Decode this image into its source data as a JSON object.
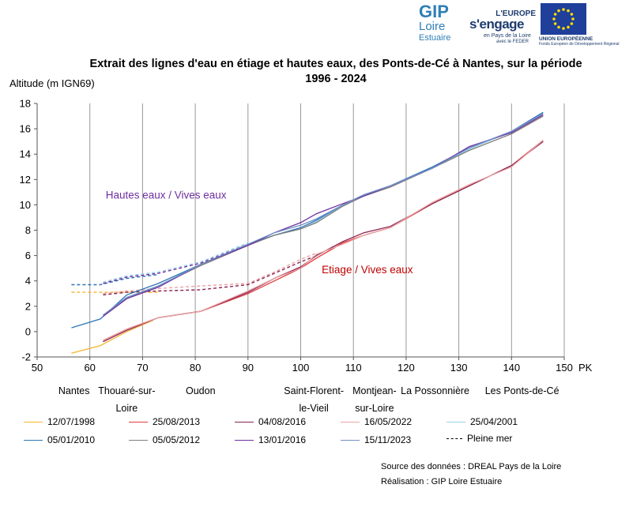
{
  "logos": {
    "gip": {
      "line1": "GIP",
      "line2": "Loire",
      "line3": "Estuaire"
    },
    "europe": {
      "line1": "L'EUROPE",
      "line2": "s'engage",
      "line3": "en Pays de la Loire",
      "line4": "avec le FEDER"
    },
    "eu": {
      "line1": "UNION EUROPÉENNE",
      "line2": "Fonds Européen de Développement Régional"
    }
  },
  "chart_data": {
    "type": "line",
    "title": "Extrait des lignes d'eau en étiage et hautes eaux, des Ponts-de-Cé à Nantes, sur la période 1996 - 2024",
    "ylabel": "Altitude  (m IGN69)",
    "xlabel": "PK",
    "xlim": [
      50,
      150
    ],
    "ylim": [
      -2,
      18
    ],
    "xticks": [
      50,
      60,
      70,
      80,
      90,
      100,
      110,
      120,
      130,
      140,
      150
    ],
    "yticks": [
      -2,
      0,
      2,
      4,
      6,
      8,
      10,
      12,
      14,
      16,
      18
    ],
    "grid": "vertical",
    "annotations": [
      {
        "text": "Hautes eaux / Vives eaux",
        "color": "#7030a0",
        "x": 63,
        "y": 10.5
      },
      {
        "text": "Etiage / Vives eaux",
        "color": "#c00000",
        "x": 104,
        "y": 4.6
      }
    ],
    "locations": [
      {
        "label": "Nantes",
        "x": 57
      },
      {
        "label": "Thouaré-sur-\nLoire",
        "x": 67
      },
      {
        "label": "Oudon",
        "x": 81
      },
      {
        "label": "Saint-Florent-\nle-Vieil",
        "x": 102.5
      },
      {
        "label": "Montjean-\nsur-Loire",
        "x": 114
      },
      {
        "label": "La Possonnière",
        "x": 125.5
      },
      {
        "label": "Les Ponts-de-Cé",
        "x": 142
      }
    ],
    "series": [
      {
        "name": "12/07/1998",
        "color": "#f5b532",
        "points": [
          [
            56.5,
            -1.7
          ],
          [
            62,
            -1.1
          ],
          [
            67,
            0
          ],
          [
            72,
            0.9
          ]
        ]
      },
      {
        "name": "25/08/2013",
        "color": "#e03c3c",
        "points": [
          [
            62.5,
            -0.7
          ],
          [
            67,
            0.2
          ],
          [
            73,
            1.1
          ],
          [
            81,
            1.6
          ],
          [
            90,
            3.0
          ],
          [
            95,
            4.0
          ],
          [
            100,
            5.0
          ],
          [
            103,
            5.8
          ],
          [
            108,
            7.0
          ],
          [
            112,
            7.6
          ],
          [
            117,
            8.2
          ],
          [
            125,
            10.1
          ],
          [
            132,
            11.5
          ],
          [
            140,
            13.1
          ],
          [
            146,
            15.1
          ]
        ]
      },
      {
        "name": "04/08/2016",
        "color": "#8b2252",
        "points": [
          [
            62.5,
            -0.8
          ],
          [
            67,
            0.1
          ],
          [
            73,
            1.1
          ],
          [
            81,
            1.6
          ],
          [
            90,
            3.1
          ],
          [
            95,
            4.2
          ],
          [
            100,
            5.1
          ],
          [
            103,
            6.0
          ],
          [
            108,
            7.1
          ],
          [
            112,
            7.8
          ],
          [
            117,
            8.3
          ],
          [
            125,
            10.1
          ],
          [
            132,
            11.5
          ],
          [
            140,
            13.1
          ],
          [
            146,
            15.0
          ]
        ]
      },
      {
        "name": "16/05/2022",
        "color": "#e9a3a3",
        "points": [
          [
            62.5,
            -0.7
          ],
          [
            67,
            0.2
          ],
          [
            73,
            1.1
          ],
          [
            81,
            1.6
          ],
          [
            90,
            3.2
          ],
          [
            95,
            4.2
          ],
          [
            100,
            5.0
          ],
          [
            103,
            6.1
          ],
          [
            108,
            6.9
          ],
          [
            112,
            7.6
          ],
          [
            117,
            8.2
          ],
          [
            125,
            10.2
          ],
          [
            132,
            11.6
          ],
          [
            140,
            13.0
          ],
          [
            146,
            15.1
          ]
        ]
      },
      {
        "name": "25/04/2001",
        "color": "#9ad0e8",
        "points": [
          [
            62.5,
            1.3
          ],
          [
            67,
            2.7
          ],
          [
            73,
            3.6
          ],
          [
            81,
            5.3
          ],
          [
            90,
            6.9
          ],
          [
            95,
            7.6
          ],
          [
            100,
            8.1
          ],
          [
            103,
            8.7
          ],
          [
            108,
            10.0
          ],
          [
            112,
            10.7
          ],
          [
            117,
            11.5
          ],
          [
            125,
            12.9
          ],
          [
            132,
            14.4
          ],
          [
            140,
            15.8
          ],
          [
            146,
            17.2
          ]
        ]
      },
      {
        "name": "05/01/2010",
        "color": "#2e75b6",
        "points": [
          [
            56.5,
            0.3
          ],
          [
            62,
            1.0
          ],
          [
            67,
            2.9
          ],
          [
            73,
            3.8
          ],
          [
            81,
            5.3
          ],
          [
            90,
            6.9
          ],
          [
            95,
            7.6
          ],
          [
            100,
            8.2
          ],
          [
            103,
            8.8
          ],
          [
            108,
            10.0
          ],
          [
            112,
            10.8
          ],
          [
            117,
            11.5
          ],
          [
            125,
            13.0
          ],
          [
            132,
            14.5
          ],
          [
            140,
            15.8
          ],
          [
            146,
            17.3
          ]
        ]
      },
      {
        "name": "05/05/2012",
        "color": "#7f7f7f",
        "points": [
          [
            62.5,
            1.2
          ],
          [
            67,
            2.6
          ],
          [
            73,
            3.6
          ],
          [
            81,
            5.2
          ],
          [
            90,
            6.8
          ],
          [
            95,
            7.6
          ],
          [
            100,
            8.1
          ],
          [
            103,
            8.6
          ],
          [
            108,
            9.9
          ],
          [
            112,
            10.7
          ],
          [
            117,
            11.4
          ],
          [
            125,
            12.9
          ],
          [
            132,
            14.3
          ],
          [
            140,
            15.6
          ],
          [
            146,
            17.0
          ]
        ]
      },
      {
        "name": "13/01/2016",
        "color": "#7030a0",
        "points": [
          [
            62.5,
            1.2
          ],
          [
            67,
            2.6
          ],
          [
            73,
            3.5
          ],
          [
            81,
            5.3
          ],
          [
            90,
            6.8
          ],
          [
            95,
            7.8
          ],
          [
            100,
            8.6
          ],
          [
            103,
            9.3
          ],
          [
            108,
            10.1
          ],
          [
            112,
            10.7
          ],
          [
            117,
            11.5
          ],
          [
            125,
            12.9
          ],
          [
            132,
            14.6
          ],
          [
            140,
            15.7
          ],
          [
            146,
            17.1
          ]
        ]
      },
      {
        "name": "15/11/2023",
        "color": "#6f8fc8",
        "points": [
          [
            62.5,
            1.3
          ],
          [
            67,
            2.7
          ],
          [
            73,
            3.6
          ],
          [
            81,
            5.3
          ],
          [
            90,
            6.9
          ],
          [
            95,
            7.8
          ],
          [
            100,
            8.4
          ],
          [
            103,
            8.9
          ],
          [
            108,
            10.0
          ],
          [
            112,
            10.8
          ],
          [
            117,
            11.5
          ],
          [
            125,
            12.9
          ],
          [
            132,
            14.5
          ],
          [
            140,
            15.8
          ],
          [
            146,
            17.2
          ]
        ]
      }
    ],
    "pleine_mer": {
      "name": "Pleine mer",
      "lines": [
        {
          "color": "#f5b532",
          "points": [
            [
              56.5,
              3.1
            ],
            [
              62,
              3.1
            ],
            [
              67,
              3.1
            ],
            [
              73,
              3.1
            ]
          ]
        },
        {
          "color": "#2e75b6",
          "points": [
            [
              56.5,
              3.7
            ],
            [
              62,
              3.7
            ],
            [
              67,
              4.2
            ],
            [
              73,
              4.5
            ]
          ]
        },
        {
          "color": "#7030a0",
          "points": [
            [
              62.5,
              3.8
            ],
            [
              67,
              4.3
            ],
            [
              73,
              4.6
            ],
            [
              81,
              5.4
            ],
            [
              90,
              6.9
            ]
          ]
        },
        {
          "color": "#8b2252",
          "points": [
            [
              62.5,
              2.9
            ],
            [
              67,
              3.1
            ],
            [
              73,
              3.2
            ],
            [
              81,
              3.3
            ],
            [
              90,
              3.7
            ],
            [
              95,
              4.6
            ],
            [
              100,
              5.5
            ],
            [
              103,
              6.0
            ]
          ]
        },
        {
          "color": "#e9a3a3",
          "points": [
            [
              62.5,
              3.0
            ],
            [
              67,
              3.2
            ],
            [
              73,
              3.4
            ],
            [
              81,
              3.6
            ],
            [
              90,
              3.8
            ],
            [
              95,
              4.7
            ],
            [
              100,
              5.7
            ],
            [
              103,
              6.2
            ]
          ]
        },
        {
          "color": "#9ad0e8",
          "points": [
            [
              62.5,
              3.9
            ],
            [
              67,
              4.4
            ],
            [
              73,
              4.7
            ],
            [
              81,
              5.5
            ],
            [
              90,
              7.0
            ]
          ]
        }
      ]
    }
  },
  "legend": {
    "row1": [
      "12/07/1998",
      "25/08/2013",
      "04/08/2016",
      "16/05/2022",
      "25/04/2001"
    ],
    "row2": [
      "05/01/2010",
      "05/05/2012",
      "13/01/2016",
      "15/11/2023",
      "Pleine mer"
    ]
  },
  "footer": {
    "source": "Source des données : DREAL Pays de la Loire",
    "realisation": "Réalisation : GIP Loire Estuaire"
  }
}
